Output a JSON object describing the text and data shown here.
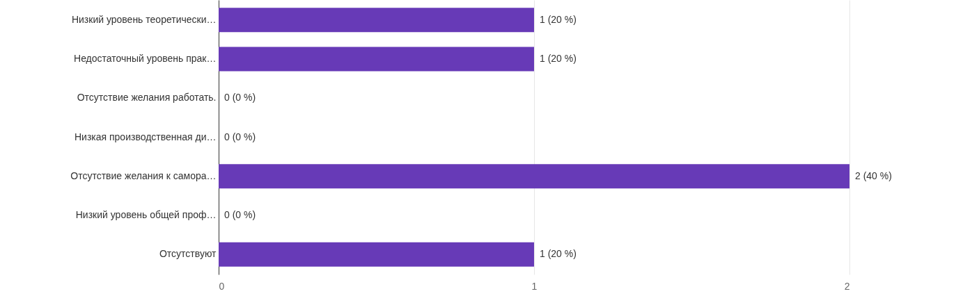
{
  "chart_data": {
    "type": "bar",
    "orientation": "horizontal",
    "categories": [
      "Низкий уровень теоретически…",
      "Недостаточный уровень прак…",
      "Отсутствие желания работать.",
      "Низкая производственная ди…",
      "Отсутствие желания к самора…",
      "Низкий уровень общей проф…",
      "Отсутствуют"
    ],
    "values": [
      1,
      1,
      0,
      0,
      2,
      0,
      1
    ],
    "value_labels": [
      "1 (20 %)",
      "1 (20 %)",
      "0 (0 %)",
      "0 (0 %)",
      "2 (40 %)",
      "0 (0 %)",
      "1 (20 %)"
    ],
    "color": "#673ab7",
    "xlim": [
      0,
      2
    ],
    "xticks": [
      0,
      1,
      2
    ],
    "grid": "x"
  }
}
